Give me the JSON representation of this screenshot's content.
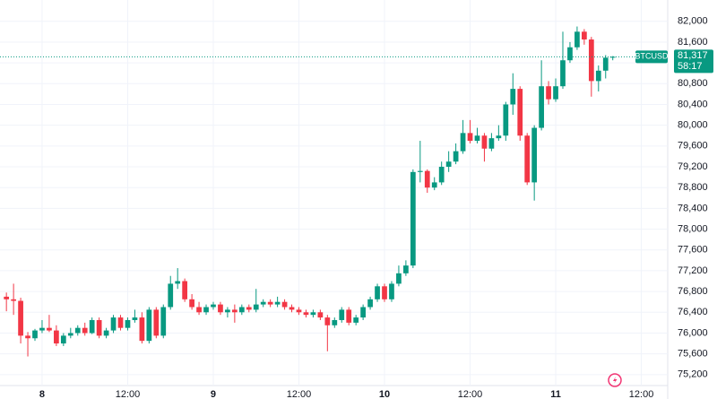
{
  "chart_data": {
    "type": "candlestick",
    "symbol": "BTCUSD",
    "last_price": {
      "value": 81317,
      "label": "81,317"
    },
    "countdown": "58:17",
    "up_color": "#089981",
    "down_color": "#f23645",
    "grid": true,
    "x": [
      -5,
      -4,
      -3,
      -2,
      -1,
      0,
      1,
      2,
      3,
      4,
      5,
      6,
      7,
      8,
      9,
      10,
      11,
      12,
      13,
      14,
      15,
      16,
      17,
      18,
      19,
      20,
      21,
      22,
      23,
      24,
      25,
      26,
      27,
      28,
      29,
      30,
      31,
      32,
      33,
      34,
      35,
      36,
      37,
      38,
      39,
      40,
      41,
      42,
      43,
      44,
      45,
      46,
      47,
      48,
      49,
      50,
      51,
      52,
      53,
      54,
      55,
      56,
      57,
      58,
      59,
      60,
      61,
      62,
      63,
      64,
      65,
      66,
      67,
      68,
      69,
      70,
      71,
      72,
      73,
      74,
      75,
      76,
      77,
      78,
      79,
      80
    ],
    "open": [
      76700,
      76650,
      76620,
      75950,
      75900,
      76050,
      76100,
      76050,
      75800,
      75950,
      76000,
      76100,
      76000,
      76250,
      75950,
      76050,
      76300,
      76100,
      76250,
      76300,
      75850,
      76450,
      75950,
      76500,
      76950,
      77000,
      76650,
      76500,
      76400,
      76500,
      76550,
      76400,
      76450,
      76400,
      76500,
      76450,
      76550,
      76600,
      76550,
      76600,
      76500,
      76450,
      76400,
      76350,
      76400,
      76300,
      76150,
      76250,
      76450,
      76200,
      76300,
      76500,
      76650,
      76900,
      76650,
      76950,
      77150,
      77300,
      79100,
      79120,
      78800,
      78900,
      79200,
      79300,
      79500,
      79850,
      79700,
      79800,
      79550,
      79750,
      79800,
      80400,
      80700,
      79800,
      78900,
      79950,
      80750,
      80500,
      80750,
      81250,
      81500,
      81800,
      81650,
      80850,
      81050,
      81300
    ],
    "high": [
      76780,
      76950,
      76680,
      76020,
      76080,
      76250,
      76350,
      76150,
      76000,
      76100,
      76150,
      76200,
      76300,
      76300,
      76100,
      76350,
      76350,
      76300,
      76450,
      76400,
      76500,
      76500,
      76550,
      77100,
      77250,
      77050,
      76750,
      76600,
      76550,
      76600,
      76600,
      76500,
      76550,
      76550,
      76550,
      76850,
      76650,
      76650,
      76700,
      76650,
      76550,
      76500,
      76450,
      76450,
      76450,
      76350,
      76300,
      76500,
      76500,
      76350,
      76550,
      76700,
      76950,
      76950,
      77000,
      77300,
      77400,
      79150,
      79700,
      79150,
      79000,
      79300,
      79500,
      79650,
      80100,
      80100,
      79950,
      79850,
      79850,
      80000,
      80450,
      81000,
      80750,
      79850,
      80000,
      81250,
      80850,
      80900,
      81800,
      81600,
      81900,
      81850,
      81700,
      81150,
      81350,
      81330
    ],
    "low": [
      76420,
      76350,
      75800,
      75550,
      75850,
      76000,
      76020,
      75750,
      75750,
      75900,
      75950,
      75950,
      75980,
      75900,
      75900,
      76000,
      76050,
      76050,
      76200,
      75800,
      75800,
      75900,
      75900,
      76450,
      76850,
      76600,
      76450,
      76350,
      76350,
      76450,
      76350,
      76300,
      76200,
      76350,
      76400,
      76400,
      76500,
      76500,
      76500,
      76450,
      76400,
      76350,
      76300,
      76300,
      76250,
      75650,
      76100,
      76200,
      76150,
      76150,
      76250,
      76450,
      76600,
      76600,
      76600,
      76900,
      77100,
      77250,
      78900,
      78700,
      78750,
      78850,
      79100,
      79250,
      79450,
      79650,
      79650,
      79300,
      79500,
      79700,
      79700,
      80200,
      79700,
      78850,
      78550,
      79900,
      80400,
      80450,
      80700,
      81200,
      81450,
      81550,
      80550,
      80650,
      80900,
      81250
    ],
    "close": [
      76650,
      76620,
      75950,
      75900,
      76050,
      76100,
      76050,
      75800,
      75950,
      76000,
      76100,
      76000,
      76250,
      75950,
      76050,
      76300,
      76100,
      76250,
      76300,
      75850,
      76450,
      75950,
      76500,
      76950,
      77000,
      76650,
      76500,
      76400,
      76500,
      76550,
      76400,
      76450,
      76400,
      76500,
      76450,
      76550,
      76600,
      76550,
      76600,
      76500,
      76450,
      76400,
      76350,
      76400,
      76300,
      76150,
      76250,
      76450,
      76200,
      76300,
      76500,
      76650,
      76900,
      76650,
      76950,
      77150,
      77300,
      79100,
      79120,
      78800,
      78900,
      79200,
      79300,
      79500,
      79850,
      79700,
      79800,
      79550,
      79750,
      79800,
      80400,
      80700,
      79800,
      78900,
      79950,
      80750,
      80500,
      80750,
      81250,
      81500,
      81800,
      81650,
      80850,
      81050,
      81300,
      81317
    ],
    "xlim": [
      -5.9,
      87.7
    ],
    "xticks": [
      {
        "value": 0,
        "label": "8"
      },
      {
        "value": 12,
        "label": "12:00"
      },
      {
        "value": 24,
        "label": "9"
      },
      {
        "value": 36,
        "label": "12:00"
      },
      {
        "value": 48,
        "label": "10"
      },
      {
        "value": 60,
        "label": "12:00"
      },
      {
        "value": 72,
        "label": "11"
      },
      {
        "value": 84,
        "label": "12:00"
      }
    ],
    "ylim": [
      74990,
      82410
    ],
    "yticks": [
      {
        "value": 75200,
        "label": "75,200"
      },
      {
        "value": 75600,
        "label": "75,600"
      },
      {
        "value": 76000,
        "label": "76,000"
      },
      {
        "value": 76400,
        "label": "76,400"
      },
      {
        "value": 76800,
        "label": "76,800"
      },
      {
        "value": 77200,
        "label": "77,200"
      },
      {
        "value": 77600,
        "label": "77,600"
      },
      {
        "value": 78000,
        "label": "78,000"
      },
      {
        "value": 78400,
        "label": "78,400"
      },
      {
        "value": 78800,
        "label": "78,800"
      },
      {
        "value": 79200,
        "label": "79,200"
      },
      {
        "value": 79600,
        "label": "79,600"
      },
      {
        "value": 80000,
        "label": "80,000"
      },
      {
        "value": 80400,
        "label": "80,400"
      },
      {
        "value": 80800,
        "label": "80,800"
      },
      {
        "value": 81200,
        "label": "81,200"
      },
      {
        "value": 81600,
        "label": "81,600"
      },
      {
        "value": 82000,
        "label": "82,000"
      }
    ]
  }
}
